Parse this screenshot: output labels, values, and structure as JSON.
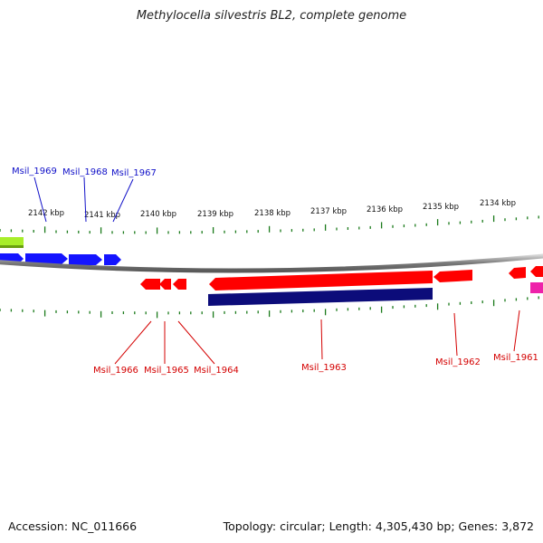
{
  "title": "Methylocella silvestris BL2, complete genome",
  "footer": {
    "accession": "Accession: NC_011666",
    "summary": "Topology: circular; Length: 4,305,430 bp; Genes: 3,872"
  },
  "colors": {
    "forward_gene": "#1414ff",
    "reverse_gene": "#ff0000",
    "dark_feature": "#0c0c7a",
    "light_green": "#a8ee2a",
    "pink": "#ee22aa",
    "tick": "#1a7a1a",
    "backbone": "#888888",
    "forward_label": "#1010c8",
    "reverse_label": "#d40000"
  },
  "scale_labels": [
    "2142 kbp",
    "2141 kbp",
    "2140 kbp",
    "2139 kbp",
    "2138 kbp",
    "2137 kbp",
    "2136 kbp",
    "2135 kbp",
    "2134 kbp"
  ],
  "gene_labels": {
    "top": [
      "Msil_1969",
      "Msil_1968",
      "Msil_1967"
    ],
    "bottom": [
      "Msil_1966",
      "Msil_1965",
      "Msil_1964",
      "Msil_1963",
      "Msil_1962",
      "Msil_1961"
    ]
  }
}
